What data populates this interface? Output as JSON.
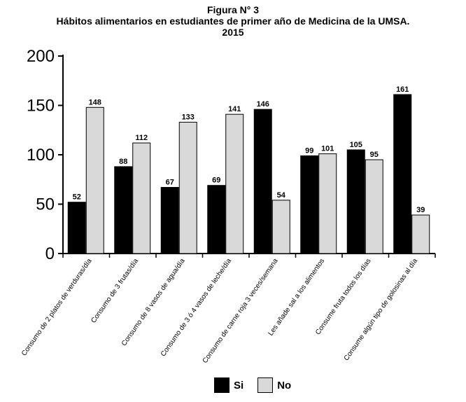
{
  "header": {
    "figure_label": "Figura N° 3",
    "title_line1": "Hábitos alimentarios en estudiantes de primer año de Medicina de la UMSA.",
    "title_line2": "2015"
  },
  "colors": {
    "si": "#000000",
    "no": "#d9d9d9"
  },
  "chart_data": {
    "type": "bar",
    "title": "Hábitos alimentarios en estudiantes de primer año de Medicina de la UMSA. 2015",
    "xlabel": "",
    "ylabel": "",
    "ylim": [
      0,
      200
    ],
    "yticks": [
      0,
      50,
      100,
      150,
      200
    ],
    "grid": false,
    "legend_position": "bottom",
    "categories": [
      "Consumo de 2 platos de verduras/día",
      "Consumo de 3 frutas/día",
      "Consumo de 8 vasos de agua/día",
      "Consumo de 3 ó 4 vasos de leche/día",
      "Consumo de carne roja 3 veces/semana",
      "Les añade sal a los alimentos",
      "Consume fruta todos los días",
      "Consume algún tipo de golosinas al día"
    ],
    "series": [
      {
        "name": "Si",
        "values": [
          52,
          88,
          67,
          69,
          146,
          99,
          105,
          161
        ]
      },
      {
        "name": "No",
        "values": [
          148,
          112,
          133,
          141,
          54,
          101,
          95,
          39
        ]
      }
    ]
  }
}
